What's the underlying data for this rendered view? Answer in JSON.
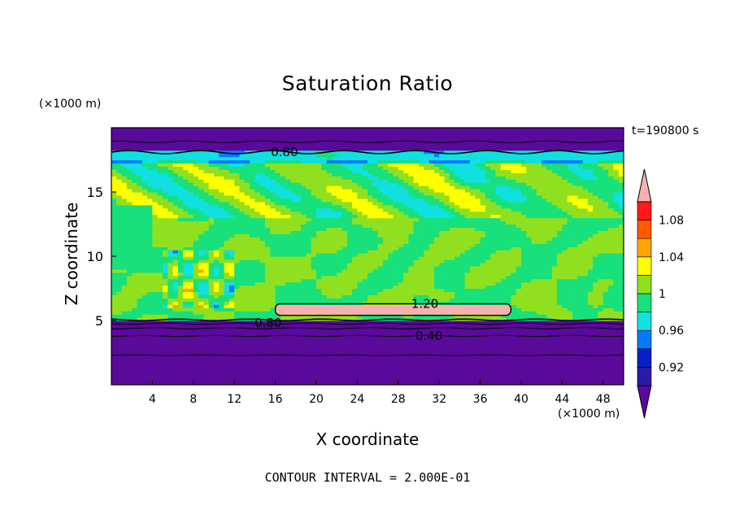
{
  "chart_data": {
    "type": "heatmap",
    "title": "Saturation Ratio",
    "xlabel": "X coordinate",
    "ylabel": "Z coordinate",
    "x_unit": "(×1000 m)",
    "z_unit": "(×1000 m)",
    "time_label": "t=190800 s",
    "footer": "CONTOUR INTERVAL = 2.000E-01",
    "xlim": [
      0,
      50
    ],
    "ylim": [
      0,
      20
    ],
    "x_ticks": [
      4,
      8,
      12,
      16,
      20,
      24,
      28,
      32,
      36,
      40,
      44,
      48
    ],
    "y_ticks": [
      5,
      10,
      15
    ],
    "colorbar": {
      "levels": [
        0.9,
        0.92,
        0.94,
        0.96,
        0.98,
        1.0,
        1.02,
        1.04,
        1.06,
        1.08,
        1.1
      ],
      "tick_labels": [
        {
          "value": 0.92,
          "label": "0.92"
        },
        {
          "value": 0.96,
          "label": "0.96"
        },
        {
          "value": 1.0,
          "label": "1"
        },
        {
          "value": 1.04,
          "label": "1.04"
        },
        {
          "value": 1.08,
          "label": "1.08"
        }
      ],
      "colors": [
        "#5a0a9a",
        "#2a1aa8",
        "#0a1ec8",
        "#0a78ff",
        "#10e0e0",
        "#18e07a",
        "#90e020",
        "#ffff00",
        "#ffa500",
        "#ff5a00",
        "#ff1a1a",
        "#f8b0b0"
      ]
    },
    "contour_labels": [
      {
        "x": 16.9,
        "z": 18.1,
        "text": "0.80"
      },
      {
        "x": 15.3,
        "z": 4.8,
        "text": "0.80"
      },
      {
        "x": 31.0,
        "z": 3.8,
        "text": "0.40"
      },
      {
        "x": 30.6,
        "z": 6.3,
        "text": "1.20"
      }
    ],
    "regions": {
      "top_layer_value": 0.8,
      "high_supersaturation_band": {
        "x": [
          16,
          39
        ],
        "z": [
          5.4,
          6.3
        ],
        "value": 1.2
      },
      "lower_layer_value": 0.4
    }
  }
}
